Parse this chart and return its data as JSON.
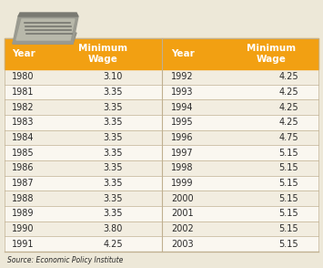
{
  "left_years": [
    "1980",
    "1981",
    "1982",
    "1983",
    "1984",
    "1985",
    "1986",
    "1987",
    "1988",
    "1989",
    "1990",
    "1991"
  ],
  "left_wages": [
    "3.10",
    "3.35",
    "3.35",
    "3.35",
    "3.35",
    "3.35",
    "3.35",
    "3.35",
    "3.35",
    "3.35",
    "3.80",
    "4.25"
  ],
  "right_years": [
    "1992",
    "1993",
    "1994",
    "1995",
    "1996",
    "1997",
    "1998",
    "1999",
    "2000",
    "2001",
    "2002",
    "2003"
  ],
  "right_wages": [
    "4.25",
    "4.25",
    "4.25",
    "4.25",
    "4.75",
    "5.15",
    "5.15",
    "5.15",
    "5.15",
    "5.15",
    "5.15",
    "5.15"
  ],
  "header_bg_color": "#F2A012",
  "text_color": "#2a2a2a",
  "header_text_color": "#FFFFFF",
  "row_bg_even": "#F2EDE0",
  "row_bg_odd": "#FAF7F0",
  "divider_color": "#C0B090",
  "body_bg": "#EDE8D8",
  "source_text": "Source: Economic Policy Institute",
  "col1_header": "Year",
  "col2_header": "Minimum\nWage",
  "col3_header": "Year",
  "col4_header": "Minimum\nWage"
}
